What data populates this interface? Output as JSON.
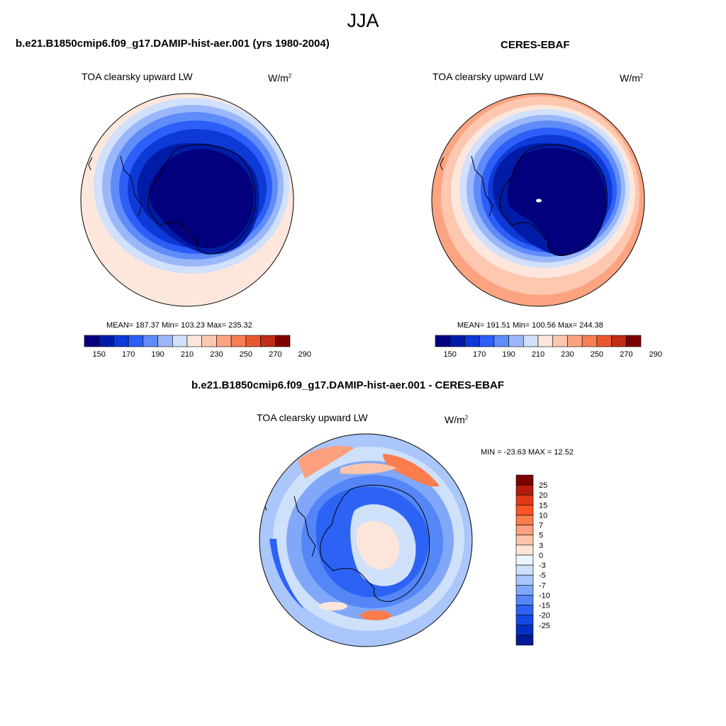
{
  "season": "JJA",
  "panels": [
    {
      "title": "b.e21.B1850cmip6.f09_g17.DAMIP-hist-aer.001 (yrs 1980-2004)",
      "variable": "TOA clearsky upward LW",
      "units": "W/m",
      "units_sup": "2",
      "stats": "MEAN= 187.37  Min= 103.23  Max= 235.32"
    },
    {
      "title": "CERES-EBAF",
      "variable": "TOA clearsky upward LW",
      "units": "W/m",
      "units_sup": "2",
      "stats": "MEAN= 191.51  Min= 100.56  Max= 244.38"
    }
  ],
  "abs_colorbar": {
    "colors": [
      "#03007d",
      "#001ba5",
      "#0d3ad6",
      "#2d5ef7",
      "#5f8cf9",
      "#9ab7f9",
      "#d1e0fb",
      "#fde7dc",
      "#fdc7b0",
      "#fca481",
      "#f87e55",
      "#e95930",
      "#c02c15",
      "#7e0200"
    ],
    "tick_labels": [
      "150",
      "170",
      "190",
      "210",
      "230",
      "250",
      "270",
      "290"
    ]
  },
  "diff_panel": {
    "title": "b.e21.B1850cmip6.f09_g17.DAMIP-hist-aer.001 - CERES-EBAF",
    "variable": "TOA clearsky upward LW",
    "units": "W/m",
    "units_sup": "2",
    "minmax": "MIN = -23.63 MAX =  12.52"
  },
  "diff_colorbar": {
    "colors_top_to_bottom": [
      "#7e0200",
      "#b51c0b",
      "#e13a1a",
      "#fb5627",
      "#fb7c4c",
      "#fca07d",
      "#fcc5ab",
      "#fde6d9",
      "#eef4fd",
      "#cfe0fb",
      "#aac6fa",
      "#81a8f8",
      "#5486f7",
      "#2d63f4",
      "#1548e3",
      "#0230c2",
      "#021a96"
    ],
    "tick_labels": [
      "25",
      "20",
      "15",
      "10",
      "7",
      "5",
      "3",
      "0",
      "-3",
      "-5",
      "-7",
      "-10",
      "-15",
      "-20",
      "-25"
    ]
  }
}
